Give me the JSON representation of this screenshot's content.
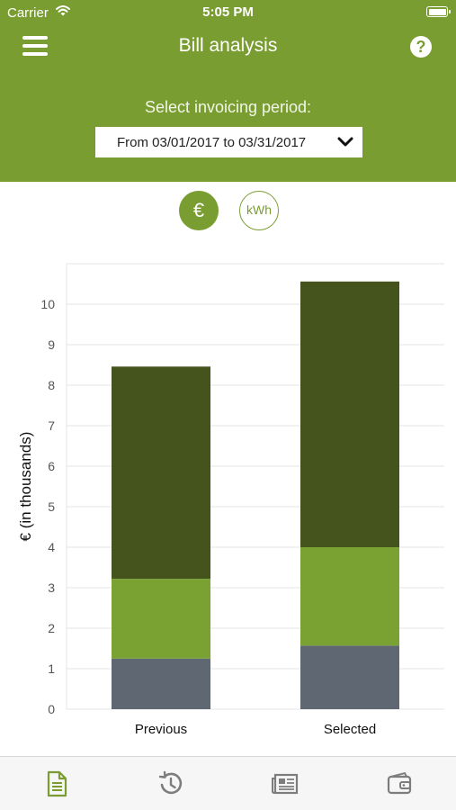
{
  "status_bar": {
    "carrier": "Carrier",
    "time": "5:05 PM"
  },
  "header": {
    "title": "Bill analysis",
    "menu_icon": "hamburger-menu-icon",
    "help_icon": "question-mark-icon",
    "help_symbol": "?"
  },
  "period": {
    "label": "Select invoicing period:",
    "selected": "From 03/01/2017 to 03/31/2017"
  },
  "unit_toggle": {
    "euro": "€",
    "kwh": "kWh",
    "active": "euro"
  },
  "colors": {
    "brand": "#7a9d32",
    "dark_green": "#45541d",
    "light_green": "#7aa232",
    "slate": "#5f6872",
    "active_tab": "#7a9d32",
    "inactive_tab": "#7d7d7d"
  },
  "chart_data": {
    "type": "bar",
    "stacked": true,
    "categories": [
      "Previous",
      "Selected"
    ],
    "series": [
      {
        "values": [
          1.25,
          1.57
        ],
        "color": "#5f6872"
      },
      {
        "values": [
          1.97,
          2.43
        ],
        "color": "#7aa232"
      },
      {
        "values": [
          5.24,
          6.56
        ],
        "color": "#45541d"
      }
    ],
    "ylabel": "€ (in thousands)",
    "ylim": [
      0,
      11
    ],
    "yticks": [
      "0",
      "1",
      "2",
      "3",
      "4",
      "5",
      "6",
      "7",
      "8",
      "9",
      "10"
    ],
    "grid": true
  },
  "tabbar": {
    "items": [
      {
        "icon": "document-icon",
        "active": true
      },
      {
        "icon": "history-icon",
        "active": false
      },
      {
        "icon": "newspaper-icon",
        "active": false
      },
      {
        "icon": "wallet-icon",
        "active": false
      }
    ]
  }
}
